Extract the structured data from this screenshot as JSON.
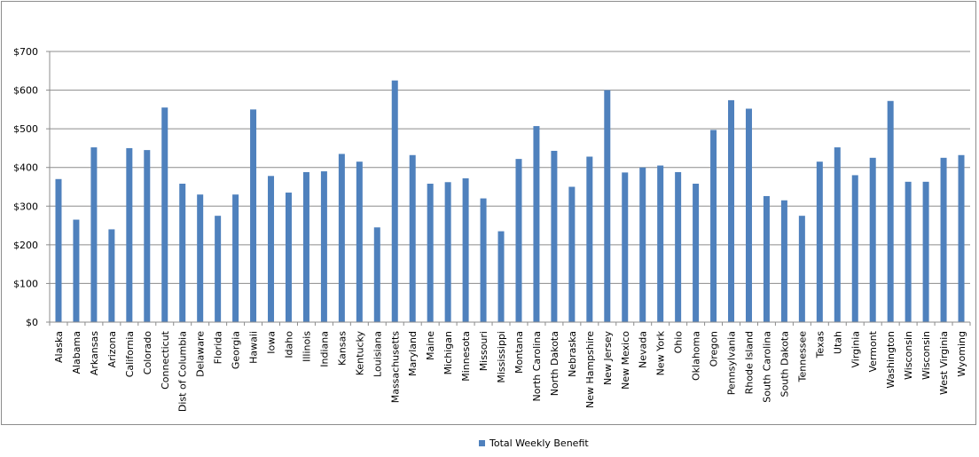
{
  "chart_data": {
    "type": "bar",
    "categories": [
      "Alaska",
      "Alabama",
      "Arkansas",
      "Arizona",
      "California",
      "Colorado",
      "Connecticut",
      "Dist of Columbia",
      "Delaware",
      "Florida",
      "Georgia",
      "Hawaii",
      "Iowa",
      "Idaho",
      "Illinois",
      "Indiana",
      "Kansas",
      "Kentucky",
      "Louisiana",
      "Massachusetts",
      "Maryland",
      "Maine",
      "Michigan",
      "Minnesota",
      "Missouri",
      "Mississippi",
      "Montana",
      "North Carolina",
      "North Dakota",
      "Nebraska",
      "New Hampshire",
      "New Jersey",
      "New Mexico",
      "Nevada",
      "New York",
      "Ohio",
      "Oklahoma",
      "Oregon",
      "Pennsylvania",
      "Rhode Island",
      "South Carolina",
      "South Dakota",
      "Tennessee",
      "Texas",
      "Utah",
      "Virginia",
      "Vermont",
      "Washington",
      "Wisconsin",
      "Wisconsin",
      "West Virginia",
      "Wyoming"
    ],
    "series": [
      {
        "name": "Total Weekly Benefit",
        "color": "#4f81bd",
        "values": [
          370,
          265,
          452,
          240,
          450,
          445,
          555,
          358,
          330,
          275,
          330,
          550,
          378,
          335,
          388,
          390,
          435,
          415,
          245,
          625,
          432,
          358,
          362,
          372,
          320,
          235,
          422,
          507,
          443,
          350,
          428,
          600,
          387,
          400,
          405,
          388,
          358,
          497,
          574,
          552,
          326,
          315,
          275,
          415,
          452,
          380,
          425,
          572,
          363,
          363,
          425,
          432
        ]
      }
    ],
    "y_tick_labels": [
      "$0",
      "$100",
      "$200",
      "$300",
      "$400",
      "$500",
      "$600",
      "$700"
    ],
    "ylim": [
      0,
      700
    ],
    "y_tick_step": 100,
    "grid": true,
    "legend": "bottom",
    "title": "",
    "xlabel": "",
    "ylabel": ""
  },
  "legend": {
    "label": "Total Weekly Benefit"
  },
  "colors": {
    "bar": "#4f81bd",
    "grid": "#8c8c8c",
    "axis": "#8c8c8c"
  }
}
